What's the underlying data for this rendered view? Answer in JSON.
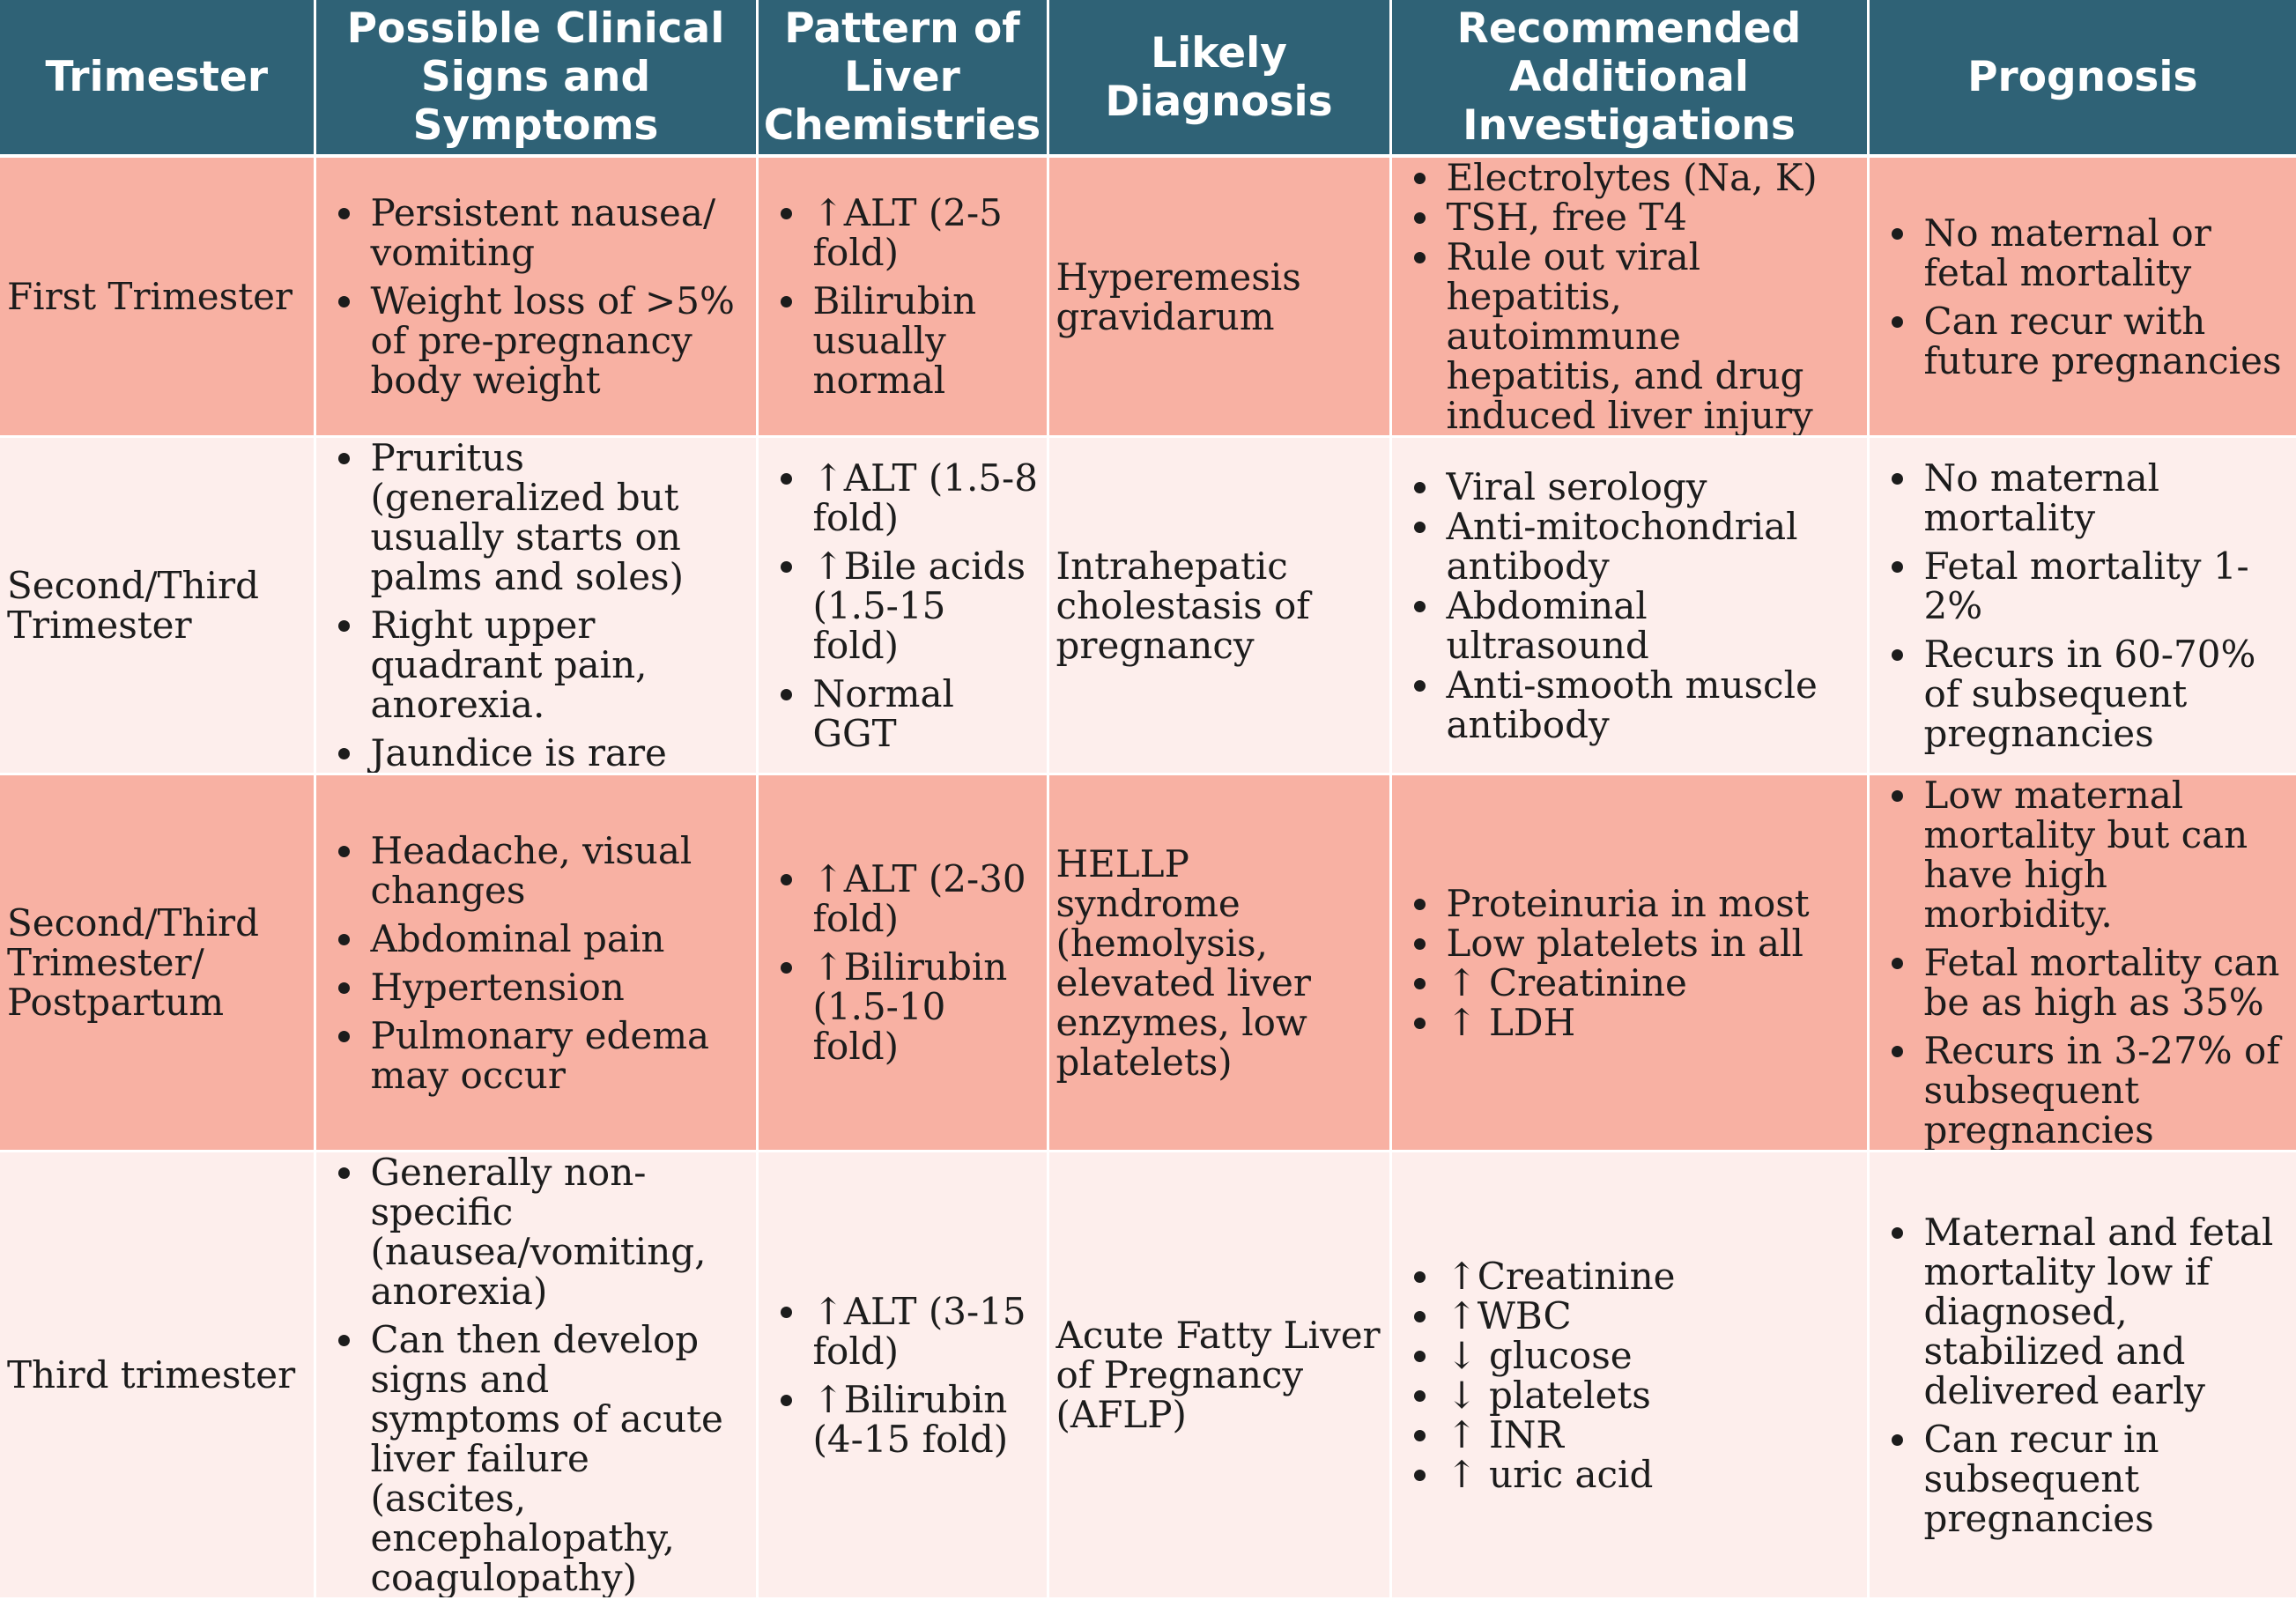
{
  "table": {
    "headers": [
      "Trimester",
      "Possible Clinical Signs and Symptoms",
      "Pattern of Liver Chemistries",
      "Likely Diagnosis",
      "Recommended Additional Investigations",
      "Prognosis"
    ],
    "rows": [
      {
        "trimester": "First Trimester",
        "signs": [
          "Persistent nausea/ vomiting",
          " Weight loss of >5% of pre-pregnancy body weight"
        ],
        "chemistries": [
          "↑ALT (2-5 fold)",
          "Bilirubin usually normal"
        ],
        "diagnosis": "Hyperemesis gravidarum",
        "investigations": [
          "Electrolytes (Na, K)",
          "TSH, free T4",
          "Rule out viral hepatitis, autoimmune hepatitis, and drug induced liver injury"
        ],
        "prognosis": [
          "No maternal or fetal mortality",
          "Can recur with future pregnancies"
        ]
      },
      {
        "trimester": "Second/Third Trimester",
        "signs": [
          "Pruritus (generalized but usually starts on palms and soles)",
          "Right upper quadrant pain, anorexia.",
          "Jaundice is rare"
        ],
        "chemistries": [
          "↑ALT (1.5-8 fold)",
          "↑Bile acids (1.5-15 fold)",
          "Normal GGT"
        ],
        "diagnosis": "Intrahepatic cholestasis of pregnancy",
        "investigations": [
          "Viral serology",
          "Anti-mitochondrial antibody",
          "Abdominal ultrasound",
          "Anti-smooth muscle antibody"
        ],
        "prognosis": [
          "No maternal mortality",
          "Fetal mortality 1-2%",
          "Recurs in 60-70% of subsequent pregnancies"
        ]
      },
      {
        "trimester": "Second/Third Trimester/ Postpartum",
        "signs": [
          "Headache, visual changes",
          "Abdominal pain",
          "Hypertension",
          "Pulmonary edema may occur"
        ],
        "chemistries": [
          "↑ALT (2-30 fold)",
          "↑Bilirubin (1.5-10 fold)"
        ],
        "diagnosis": "HELLP syndrome (hemolysis, elevated liver enzymes, low platelets)",
        "investigations": [
          "Proteinuria in most",
          "Low platelets in all",
          "↑ Creatinine",
          "↑ LDH"
        ],
        "prognosis": [
          "Low maternal mortality but can have high morbidity.",
          "Fetal mortality can be as high as 35%",
          "Recurs in 3-27% of subsequent pregnancies"
        ]
      },
      {
        "trimester": "Third trimester",
        "signs": [
          "Generally non-specific (nausea/vomiting, anorexia)",
          " Can then develop signs and symptoms of acute liver failure (ascites, encephalopathy, coagulopathy)"
        ],
        "chemistries": [
          "↑ALT (3-15 fold)",
          "↑Bilirubin (4-15 fold)"
        ],
        "diagnosis": "Acute Fatty Liver of Pregnancy (AFLP)",
        "investigations": [
          "↑Creatinine",
          "↑WBC",
          "↓ glucose",
          "↓ platelets",
          "↑ INR",
          "↑ uric acid"
        ],
        "prognosis": [
          "Maternal and fetal mortality low if diagnosed, stabilized and delivered early",
          "Can recur in subsequent pregnancies"
        ]
      }
    ]
  },
  "colors": {
    "header_bg": "#2f6276",
    "row_dark": "#f8b1a3",
    "row_light": "#fdeeec"
  }
}
